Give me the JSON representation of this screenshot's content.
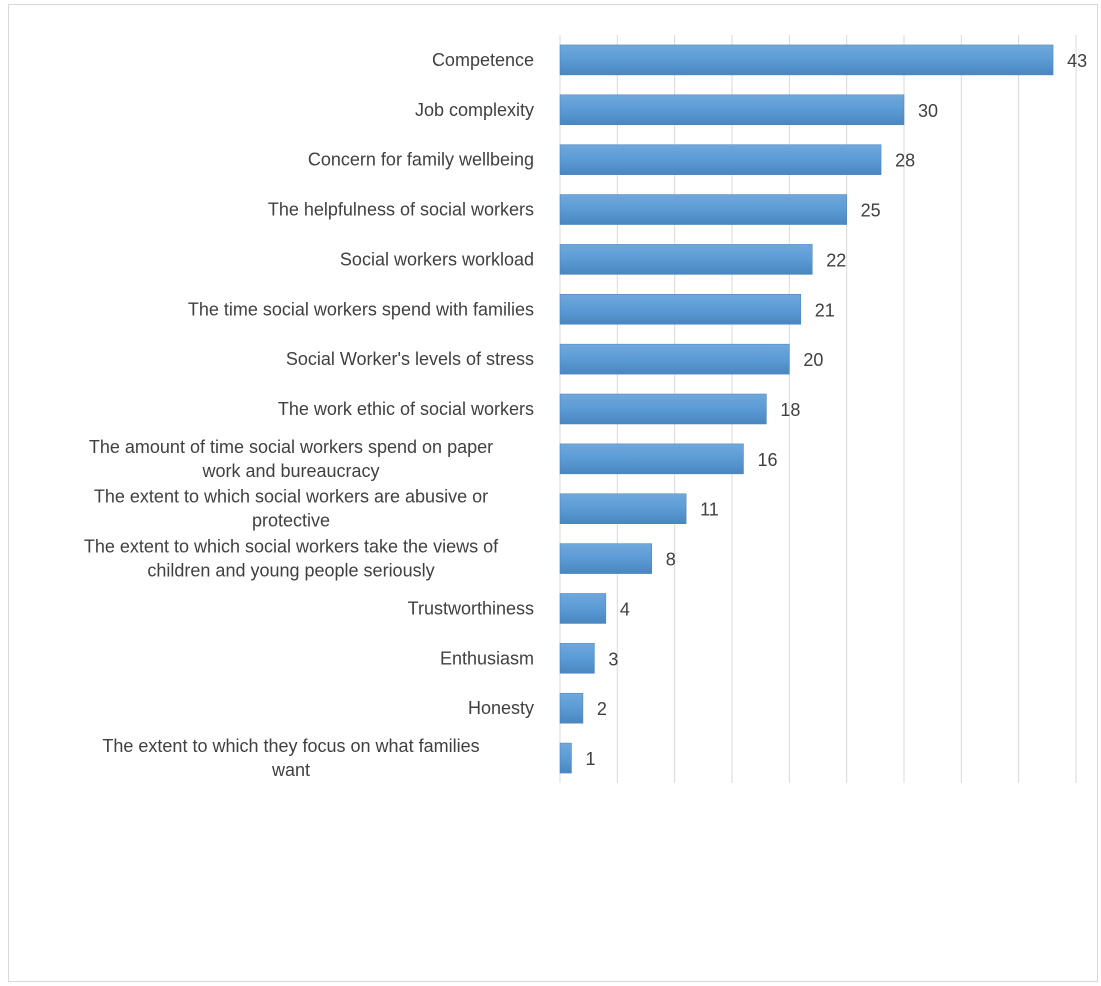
{
  "chart_data": {
    "type": "bar",
    "orientation": "horizontal",
    "title": "",
    "xlabel": "",
    "ylabel": "",
    "xlim": [
      0,
      45
    ],
    "grid": true,
    "legend": "none",
    "bar_color": "#5b9bd5",
    "categories": [
      "Competence",
      "Job complexity",
      "Concern for family wellbeing",
      "The helpfulness of social workers",
      "Social workers workload",
      "The time social workers spend with families",
      "Social Worker's levels of stress",
      "The work ethic of social workers",
      "The amount of time social workers spend on paper work and bureaucracy",
      "The extent to which social workers are abusive or protective",
      "The extent to which social workers take the views of children and young people seriously",
      "Trustworthiness",
      "Enthusiasm",
      "Honesty",
      "The extent to which they focus on what families want"
    ],
    "category_lines": [
      [
        "Competence"
      ],
      [
        "Job complexity"
      ],
      [
        "Concern for family wellbeing"
      ],
      [
        "The helpfulness of social workers"
      ],
      [
        "Social workers workload"
      ],
      [
        "The time social workers spend with families"
      ],
      [
        "Social Worker's levels of stress"
      ],
      [
        "The work ethic of social workers"
      ],
      [
        "The amount of time social workers spend on paper",
        "work and bureaucracy"
      ],
      [
        "The extent to which social workers are abusive or",
        "protective"
      ],
      [
        "The extent to which social workers take the views of",
        "children and young people seriously"
      ],
      [
        "Trustworthiness"
      ],
      [
        "Enthusiasm"
      ],
      [
        "Honesty"
      ],
      [
        "The extent to which they focus on what families",
        "want"
      ]
    ],
    "values": [
      43,
      30,
      28,
      25,
      22,
      21,
      20,
      18,
      16,
      11,
      8,
      4,
      3,
      2,
      1
    ]
  }
}
